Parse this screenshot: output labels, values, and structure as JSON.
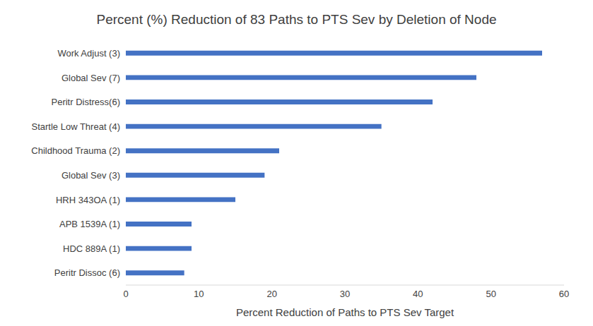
{
  "chart_data": {
    "type": "bar",
    "orientation": "horizontal",
    "title": "Percent (%) Reduction of 83 Paths to PTS Sev by Deletion of Node",
    "x_label": "Percent Reduction of Paths to PTS Sev Target",
    "categories": [
      "Work Adjust (3)",
      "Global Sev (7)",
      "Peritr Distress(6)",
      "Startle Low Threat (4)",
      "Childhood Trauma (2)",
      "Global Sev (3)",
      "HRH 343OA (1)",
      "APB 1539A (1)",
      "HDC 889A (1)",
      "Peritr Dissoc (6)"
    ],
    "values": [
      57,
      48,
      42,
      35,
      21,
      19,
      15,
      9,
      9,
      8
    ],
    "color": "#4472c4",
    "xlim": [
      0,
      60
    ],
    "xticks": [
      0,
      10,
      20,
      30,
      40,
      50,
      60
    ],
    "grid": false
  }
}
